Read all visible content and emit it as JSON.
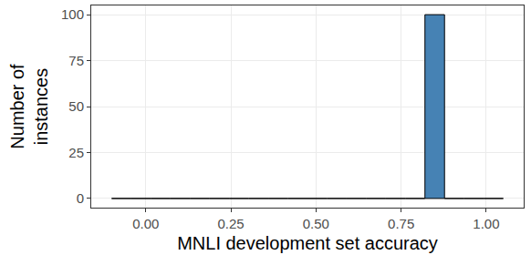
{
  "chart_data": {
    "type": "histogram",
    "x_label": "MNLI development set accuracy",
    "y_label": "Number of\ninstances",
    "bins": [
      -0.1,
      -0.0425,
      0.015,
      0.0725,
      0.13,
      0.1875,
      0.245,
      0.3025,
      0.36,
      0.4175,
      0.475,
      0.5325,
      0.59,
      0.6475,
      0.705,
      0.7625,
      0.82,
      0.8775,
      0.935,
      0.9925,
      1.05
    ],
    "counts": [
      0,
      0,
      0,
      0,
      0,
      0,
      0,
      0,
      0,
      0,
      0,
      0,
      0,
      0,
      0,
      0,
      100,
      0,
      0,
      0
    ],
    "color": "#4682b4",
    "xlim": [
      -0.16,
      1.11
    ],
    "xticks": [
      {
        "value": 0,
        "label": "0.00"
      },
      {
        "value": 0.25,
        "label": "0.25"
      },
      {
        "value": 0.5,
        "label": "0.50"
      },
      {
        "value": 0.75,
        "label": "0.75"
      },
      {
        "value": 1,
        "label": "1.00"
      }
    ],
    "ylim": [
      -5,
      105
    ],
    "yticks": [
      0,
      25,
      50,
      75,
      100
    ],
    "grid": true
  }
}
